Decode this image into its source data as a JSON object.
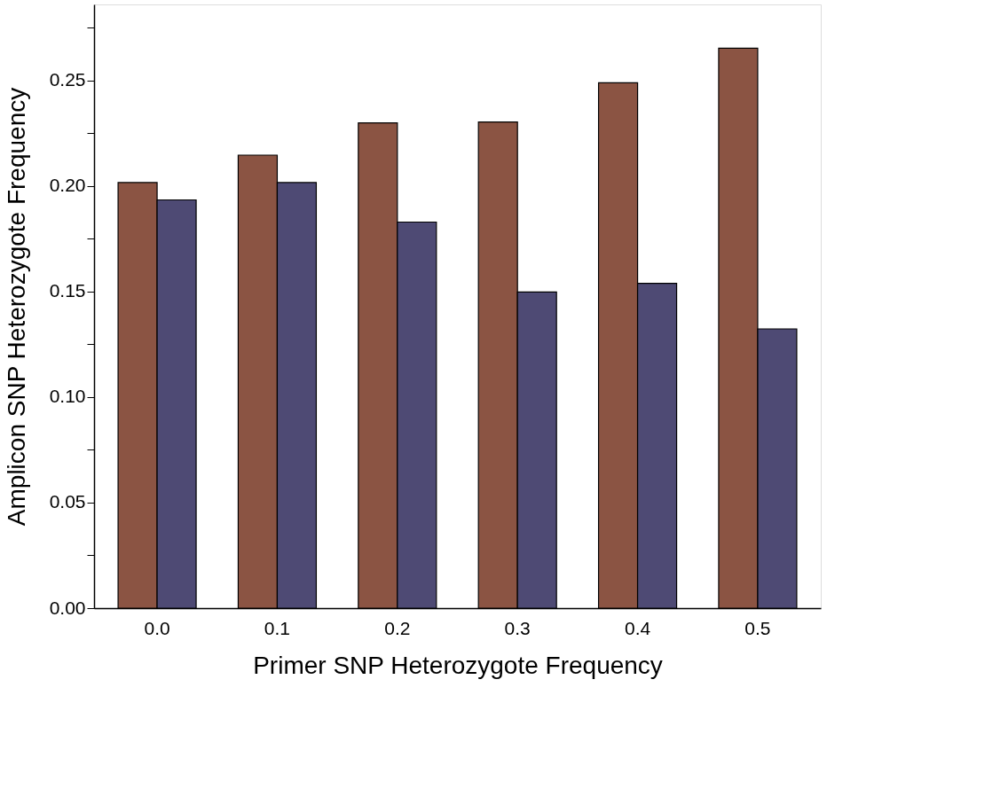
{
  "chart_data": {
    "type": "bar",
    "xlabel": "Primer SNP Heterozygote Frequency",
    "ylabel": "Amplicon SNP Heterozygote Frequency",
    "categories": [
      "0.0",
      "0.1",
      "0.2",
      "0.3",
      "0.4",
      "0.5"
    ],
    "series": [
      {
        "color": "#8b5443",
        "values": [
          0.2016,
          0.2146,
          0.2299,
          0.2303,
          0.2489,
          0.2653
        ]
      },
      {
        "color": "#4e4a74",
        "values": [
          0.1934,
          0.2016,
          0.1829,
          0.1498,
          0.1539,
          0.1323
        ]
      }
    ],
    "ylim": [
      0,
      0.286
    ],
    "yticks": [
      {
        "value": 0,
        "label": "0.00"
      },
      {
        "value": 0.025,
        "label": null
      },
      {
        "value": 0.05,
        "label": "0.05"
      },
      {
        "value": 0.075,
        "label": null
      },
      {
        "value": 0.1,
        "label": "0.10"
      },
      {
        "value": 0.125,
        "label": null
      },
      {
        "value": 0.15,
        "label": "0.15"
      },
      {
        "value": 0.175,
        "label": null
      },
      {
        "value": 0.2,
        "label": "0.20"
      },
      {
        "value": 0.225,
        "label": null
      },
      {
        "value": 0.25,
        "label": "0.25"
      },
      {
        "value": 0.275,
        "label": null
      }
    ],
    "grid": false,
    "legend": false
  }
}
